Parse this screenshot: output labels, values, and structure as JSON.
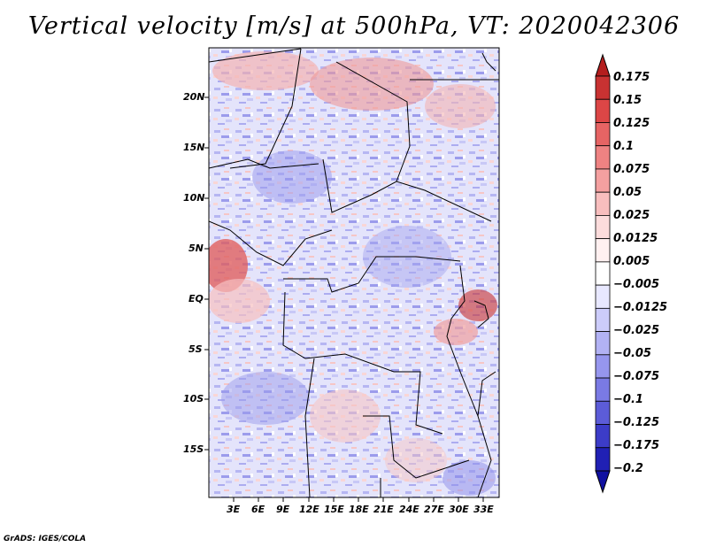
{
  "title": "Vertical velocity [m/s] at 500hPa, VT: 2020042306",
  "latitude_labels": [
    "20N",
    "15N",
    "10N",
    "5N",
    "EQ",
    "5S",
    "10S",
    "15S"
  ],
  "longitude_labels": [
    "3E",
    "6E",
    "9E",
    "12E",
    "15E",
    "18E",
    "21E",
    "24E",
    "27E",
    "30E",
    "33E"
  ],
  "colorbar": {
    "labels": [
      "0.175",
      "0.15",
      "0.125",
      "0.1",
      "0.075",
      "0.05",
      "0.025",
      "0.0125",
      "0.005",
      "−0.005",
      "−0.0125",
      "−0.025",
      "−0.05",
      "−0.075",
      "−0.1",
      "−0.125",
      "−0.175",
      "−0.2"
    ],
    "colors": [
      "#b41e1e",
      "#c83232",
      "#dc4646",
      "#e66464",
      "#ee8282",
      "#f4a0a0",
      "#f8bebe",
      "#fcdcdc",
      "#fff0f0",
      "#ffffff",
      "#e8e8ff",
      "#ccccfa",
      "#b2b2f4",
      "#9696ee",
      "#7a7ae4",
      "#5c5cd8",
      "#3c3cc8",
      "#2020b4",
      "#1010a0"
    ]
  },
  "credit": "GrADS: IGES/COLA"
}
